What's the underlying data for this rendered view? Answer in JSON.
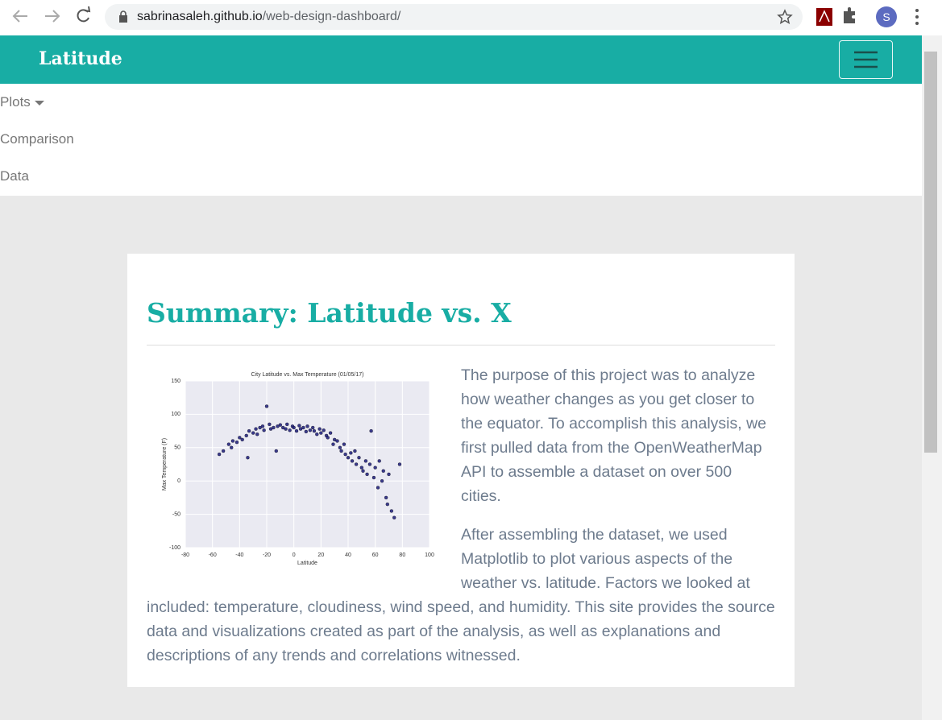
{
  "browser": {
    "url_host": "sabrinasaleh.github.io",
    "url_path": "/web-design-dashboard/",
    "profile_initial": "S"
  },
  "navbar": {
    "brand": "Latitude",
    "menu": [
      "Plots",
      "Comparison",
      "Data"
    ]
  },
  "summary": {
    "heading": "Summary: Latitude vs. X",
    "paragraphs": [
      "The purpose of this project was to analyze how weather changes as you get closer to the equator. To accomplish this analysis, we first pulled data from the OpenWeatherMap API to assemble a dataset on over 500 cities.",
      "After assembling the dataset, we used Matplotlib to plot various aspects of the weather vs. latitude. Factors we looked at included: temperature, cloudiness, wind speed, and humidity. This site provides the source data and visualizations created as part of the analysis, as well as explanations and descriptions of any trends and correlations witnessed."
    ]
  },
  "chart_data": {
    "type": "scatter",
    "title": "City Latitude vs. Max Temperature (01/05/17)",
    "x_label": "Latitude",
    "y_label": "Max Temperature (F)",
    "color": "#1b1b7a",
    "xlim": [
      -80,
      100
    ],
    "ylim": [
      -100,
      150
    ],
    "xticks": [
      -80,
      -60,
      -40,
      -20,
      0,
      20,
      40,
      60,
      80,
      100
    ],
    "yticks": [
      -100,
      -50,
      0,
      50,
      100,
      150
    ],
    "grid": true,
    "x": [
      -55,
      -52,
      -48,
      -46,
      -45,
      -42,
      -40,
      -38,
      -35,
      -34,
      -33,
      -30,
      -28,
      -27,
      -25,
      -23,
      -22,
      -20,
      -18,
      -17,
      -15,
      -13,
      -12,
      -10,
      -8,
      -6,
      -5,
      -3,
      -1,
      0,
      2,
      4,
      5,
      7,
      9,
      10,
      12,
      14,
      15,
      17,
      19,
      20,
      22,
      24,
      25,
      27,
      29,
      30,
      32,
      34,
      35,
      37,
      38,
      40,
      42,
      43,
      45,
      46,
      48,
      50,
      51,
      53,
      54,
      56,
      57,
      59,
      60,
      62,
      63,
      65,
      66,
      68,
      69,
      70,
      72,
      74,
      78
    ],
    "y": [
      40,
      45,
      55,
      50,
      60,
      58,
      65,
      62,
      68,
      35,
      75,
      72,
      78,
      70,
      80,
      82,
      76,
      112,
      85,
      78,
      80,
      45,
      82,
      84,
      80,
      78,
      85,
      76,
      82,
      80,
      75,
      83,
      78,
      80,
      74,
      82,
      76,
      80,
      75,
      70,
      78,
      72,
      76,
      68,
      65,
      72,
      55,
      62,
      60,
      50,
      45,
      55,
      40,
      35,
      42,
      30,
      45,
      25,
      35,
      20,
      15,
      30,
      10,
      25,
      75,
      5,
      20,
      -10,
      30,
      0,
      15,
      -25,
      -35,
      10,
      -45,
      -55,
      25
    ]
  }
}
